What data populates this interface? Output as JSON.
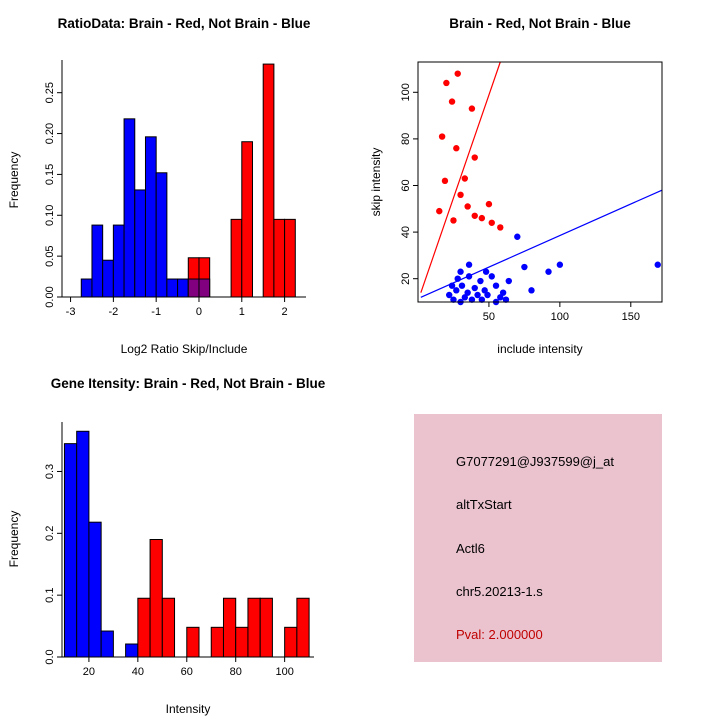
{
  "colors": {
    "red": "#ff0000",
    "blue": "#0000ff",
    "purple": "#800080",
    "axis": "#000000"
  },
  "info_box": {
    "bg": "#eac3cf",
    "lines": [
      {
        "text": "G7077291@J937599@j_at",
        "color": "#000000"
      },
      {
        "text": "altTxStart",
        "color": "#000000"
      },
      {
        "text": "Actl6",
        "color": "#000000"
      },
      {
        "text": "chr5.20213-1.s",
        "color": "#000000"
      },
      {
        "text": "Pval: 2.000000",
        "color": "#c00000"
      }
    ]
  },
  "chart_data": [
    {
      "id": "ratio-histogram",
      "type": "bar",
      "title": "RatioData: Brain - Red, Not Brain - Blue",
      "xlabel": "Log2 Ratio Skip/Include",
      "ylabel": "Frequency",
      "xlim": [
        -3.2,
        2.5
      ],
      "ylim": [
        0,
        0.29
      ],
      "xticks": [
        -3,
        -2,
        -1,
        0,
        1,
        2
      ],
      "xtick_labels": [
        "-3",
        "-2",
        "-1",
        "0",
        "1",
        "2"
      ],
      "yticks": [
        0,
        0.05,
        0.1,
        0.15,
        0.2,
        0.25
      ],
      "ytick_labels": [
        "0.00",
        "0.05",
        "0.10",
        "0.15",
        "0.20",
        "0.25"
      ],
      "grid": false,
      "legend": "none",
      "bin_width": 0.25,
      "bars": [
        {
          "x": -2.75,
          "h": 0.022,
          "color": "blue"
        },
        {
          "x": -2.5,
          "h": 0.088,
          "color": "blue"
        },
        {
          "x": -2.25,
          "h": 0.045,
          "color": "blue"
        },
        {
          "x": -2.0,
          "h": 0.088,
          "color": "blue"
        },
        {
          "x": -1.75,
          "h": 0.218,
          "color": "blue"
        },
        {
          "x": -1.5,
          "h": 0.131,
          "color": "blue"
        },
        {
          "x": -1.25,
          "h": 0.196,
          "color": "blue"
        },
        {
          "x": -1.0,
          "h": 0.152,
          "color": "blue"
        },
        {
          "x": -0.75,
          "h": 0.022,
          "color": "blue"
        },
        {
          "x": -0.5,
          "h": 0.022,
          "color": "blue"
        },
        {
          "x": -0.25,
          "h": 0.048,
          "color": "red"
        },
        {
          "x": 0.0,
          "h": 0.048,
          "color": "red"
        },
        {
          "x": -0.25,
          "h": 0.022,
          "color": "purple"
        },
        {
          "x": 0.0,
          "h": 0.022,
          "color": "purple"
        },
        {
          "x": 0.75,
          "h": 0.095,
          "color": "red"
        },
        {
          "x": 1.0,
          "h": 0.19,
          "color": "red"
        },
        {
          "x": 1.5,
          "h": 0.285,
          "color": "red"
        },
        {
          "x": 1.75,
          "h": 0.095,
          "color": "red"
        },
        {
          "x": 2.0,
          "h": 0.095,
          "color": "red"
        }
      ]
    },
    {
      "id": "intensity-scatter",
      "type": "scatter",
      "title": "Brain - Red, Not Brain - Blue",
      "xlabel": "include intensity",
      "ylabel": "skip intensity",
      "xlim": [
        0,
        172
      ],
      "ylim": [
        10,
        113
      ],
      "xticks": [
        50,
        100,
        150
      ],
      "xtick_labels": [
        "50",
        "100",
        "150"
      ],
      "yticks": [
        20,
        40,
        60,
        80,
        100
      ],
      "ytick_labels": [
        "20",
        "40",
        "60",
        "80",
        "100"
      ],
      "grid": false,
      "legend": "none",
      "series": [
        {
          "name": "brain",
          "color": "red",
          "points": [
            [
              20,
              104
            ],
            [
              28,
              108
            ],
            [
              24,
              96
            ],
            [
              38,
              93
            ],
            [
              17,
              81
            ],
            [
              27,
              76
            ],
            [
              40,
              72
            ],
            [
              19,
              62
            ],
            [
              33,
              63
            ],
            [
              30,
              56
            ],
            [
              35,
              51
            ],
            [
              15,
              49
            ],
            [
              25,
              45
            ],
            [
              40,
              47
            ],
            [
              45,
              46
            ],
            [
              50,
              52
            ],
            [
              52,
              44
            ],
            [
              58,
              42
            ]
          ]
        },
        {
          "name": "not-brain",
          "color": "blue",
          "points": [
            [
              22,
              13
            ],
            [
              24,
              17
            ],
            [
              25,
              11
            ],
            [
              27,
              15
            ],
            [
              28,
              20
            ],
            [
              30,
              10
            ],
            [
              30,
              23
            ],
            [
              31,
              17
            ],
            [
              33,
              12
            ],
            [
              35,
              14
            ],
            [
              36,
              21
            ],
            [
              36,
              26
            ],
            [
              38,
              11
            ],
            [
              40,
              16
            ],
            [
              42,
              13
            ],
            [
              44,
              19
            ],
            [
              45,
              11
            ],
            [
              47,
              15
            ],
            [
              48,
              23
            ],
            [
              49,
              13
            ],
            [
              52,
              21
            ],
            [
              55,
              10
            ],
            [
              55,
              17
            ],
            [
              58,
              12
            ],
            [
              60,
              14
            ],
            [
              62,
              11
            ],
            [
              64,
              19
            ],
            [
              70,
              38
            ],
            [
              75,
              25
            ],
            [
              80,
              15
            ],
            [
              92,
              23
            ],
            [
              100,
              26
            ],
            [
              169,
              26
            ]
          ]
        }
      ],
      "lines": [
        {
          "name": "brain-fit",
          "color": "red",
          "from": [
            2,
            14
          ],
          "to": [
            58,
            113
          ]
        },
        {
          "name": "not-brain-fit",
          "color": "blue",
          "from": [
            2,
            12
          ],
          "to": [
            172,
            58
          ]
        }
      ]
    },
    {
      "id": "gene-intensity-histogram",
      "type": "bar",
      "title": "Gene Itensity: Brain - Red, Not Brain - Blue",
      "xlabel": "Intensity",
      "ylabel": "Frequency",
      "xlim": [
        9,
        112
      ],
      "ylim": [
        0,
        0.38
      ],
      "xticks": [
        20,
        40,
        60,
        80,
        100
      ],
      "xtick_labels": [
        "20",
        "40",
        "60",
        "80",
        "100"
      ],
      "yticks": [
        0,
        0.1,
        0.2,
        0.3
      ],
      "ytick_labels": [
        "0.0",
        "0.1",
        "0.2",
        "0.3"
      ],
      "grid": false,
      "legend": "none",
      "bin_width": 5,
      "bars": [
        {
          "x": 10,
          "h": 0.345,
          "color": "blue"
        },
        {
          "x": 15,
          "h": 0.365,
          "color": "blue"
        },
        {
          "x": 20,
          "h": 0.218,
          "color": "blue"
        },
        {
          "x": 25,
          "h": 0.042,
          "color": "blue"
        },
        {
          "x": 35,
          "h": 0.021,
          "color": "blue"
        },
        {
          "x": 40,
          "h": 0.095,
          "color": "red"
        },
        {
          "x": 45,
          "h": 0.19,
          "color": "red"
        },
        {
          "x": 50,
          "h": 0.095,
          "color": "red"
        },
        {
          "x": 60,
          "h": 0.048,
          "color": "red"
        },
        {
          "x": 70,
          "h": 0.048,
          "color": "red"
        },
        {
          "x": 75,
          "h": 0.095,
          "color": "red"
        },
        {
          "x": 80,
          "h": 0.048,
          "color": "red"
        },
        {
          "x": 85,
          "h": 0.095,
          "color": "red"
        },
        {
          "x": 90,
          "h": 0.095,
          "color": "red"
        },
        {
          "x": 100,
          "h": 0.048,
          "color": "red"
        },
        {
          "x": 105,
          "h": 0.095,
          "color": "red"
        }
      ]
    }
  ]
}
